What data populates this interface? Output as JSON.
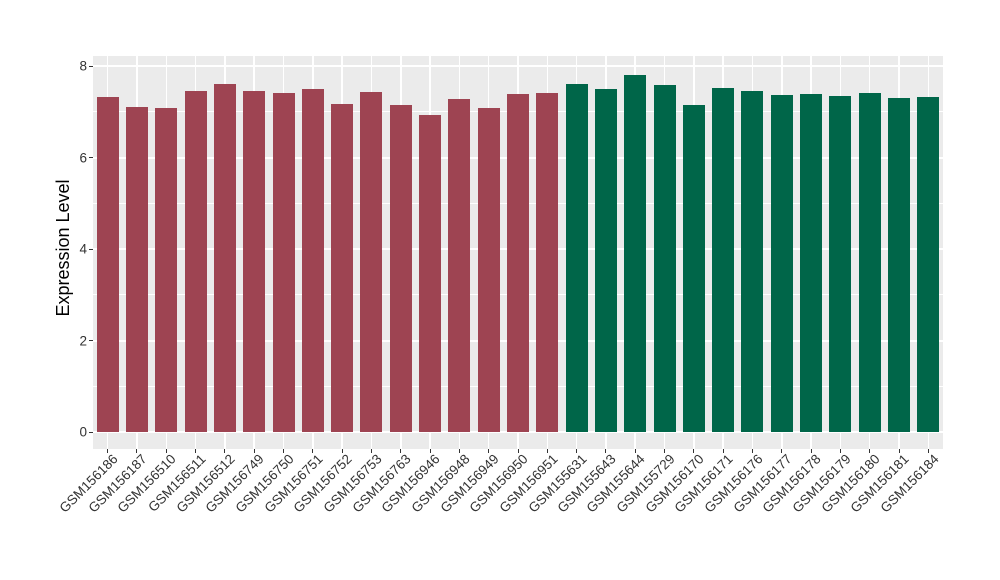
{
  "chart_data": {
    "type": "bar",
    "title": "",
    "xlabel": "",
    "ylabel": "Expression Level",
    "ylim": [
      0,
      8
    ],
    "yticks": [
      0,
      2,
      4,
      6,
      8
    ],
    "yticks_minor": [
      1,
      3,
      5,
      7
    ],
    "grid": true,
    "legend": "none",
    "bars": [
      {
        "label": "GSM156186",
        "value": 7.33,
        "color": "#9E4452"
      },
      {
        "label": "GSM156187",
        "value": 7.11,
        "color": "#9E4452"
      },
      {
        "label": "GSM156510",
        "value": 7.09,
        "color": "#9E4452"
      },
      {
        "label": "GSM156511",
        "value": 7.45,
        "color": "#9E4452"
      },
      {
        "label": "GSM156512",
        "value": 7.61,
        "color": "#9E4452"
      },
      {
        "label": "GSM156749",
        "value": 7.45,
        "color": "#9E4452"
      },
      {
        "label": "GSM156750",
        "value": 7.42,
        "color": "#9E4452"
      },
      {
        "label": "GSM156751",
        "value": 7.49,
        "color": "#9E4452"
      },
      {
        "label": "GSM156752",
        "value": 7.17,
        "color": "#9E4452"
      },
      {
        "label": "GSM156753",
        "value": 7.43,
        "color": "#9E4452"
      },
      {
        "label": "GSM156763",
        "value": 7.15,
        "color": "#9E4452"
      },
      {
        "label": "GSM156946",
        "value": 6.93,
        "color": "#9E4452"
      },
      {
        "label": "GSM156948",
        "value": 7.28,
        "color": "#9E4452"
      },
      {
        "label": "GSM156949",
        "value": 7.08,
        "color": "#9E4452"
      },
      {
        "label": "GSM156950",
        "value": 7.38,
        "color": "#9E4452"
      },
      {
        "label": "GSM156951",
        "value": 7.41,
        "color": "#9E4452"
      },
      {
        "label": "GSM155631",
        "value": 7.61,
        "color": "#006649"
      },
      {
        "label": "GSM155643",
        "value": 7.5,
        "color": "#006649"
      },
      {
        "label": "GSM155644",
        "value": 7.8,
        "color": "#006649"
      },
      {
        "label": "GSM155729",
        "value": 7.58,
        "color": "#006649"
      },
      {
        "label": "GSM156170",
        "value": 7.15,
        "color": "#006649"
      },
      {
        "label": "GSM156171",
        "value": 7.53,
        "color": "#006649"
      },
      {
        "label": "GSM156176",
        "value": 7.45,
        "color": "#006649"
      },
      {
        "label": "GSM156177",
        "value": 7.37,
        "color": "#006649"
      },
      {
        "label": "GSM156178",
        "value": 7.38,
        "color": "#006649"
      },
      {
        "label": "GSM156179",
        "value": 7.34,
        "color": "#006649"
      },
      {
        "label": "GSM156180",
        "value": 7.4,
        "color": "#006649"
      },
      {
        "label": "GSM156181",
        "value": 7.29,
        "color": "#006649"
      },
      {
        "label": "GSM156184",
        "value": 7.33,
        "color": "#006649"
      }
    ]
  },
  "colors": {
    "bar_group_red": "#9E4452",
    "bar_group_green": "#006649",
    "panel_background": "#EBEBEB",
    "gridline": "#FFFFFF",
    "axis_text": "#333333",
    "axis_title": "#000000",
    "tick_mark": "#333333",
    "page_background": "#FFFFFF"
  }
}
